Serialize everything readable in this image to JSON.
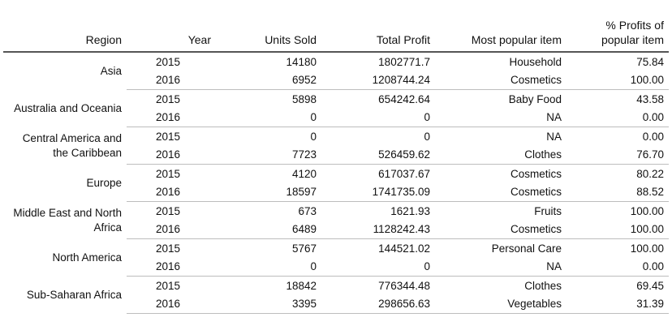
{
  "headers": {
    "region": "Region",
    "year": "Year",
    "units": "Units Sold",
    "profit": "Total Profit",
    "item": "Most popular item",
    "pct": "% Profits of popular item"
  },
  "groups": [
    {
      "region": "Asia",
      "rows": [
        {
          "year": "2015",
          "units": "14180",
          "profit": "1802771.7",
          "item": "Household",
          "pct": "75.84"
        },
        {
          "year": "2016",
          "units": "6952",
          "profit": "1208744.24",
          "item": "Cosmetics",
          "pct": "100.00"
        }
      ]
    },
    {
      "region": "Australia and Oceania",
      "rows": [
        {
          "year": "2015",
          "units": "5898",
          "profit": "654242.64",
          "item": "Baby Food",
          "pct": "43.58"
        },
        {
          "year": "2016",
          "units": "0",
          "profit": "0",
          "item": "NA",
          "pct": "0.00"
        }
      ]
    },
    {
      "region": "Central America and the Caribbean",
      "rows": [
        {
          "year": "2015",
          "units": "0",
          "profit": "0",
          "item": "NA",
          "pct": "0.00"
        },
        {
          "year": "2016",
          "units": "7723",
          "profit": "526459.62",
          "item": "Clothes",
          "pct": "76.70"
        }
      ]
    },
    {
      "region": "Europe",
      "rows": [
        {
          "year": "2015",
          "units": "4120",
          "profit": "617037.67",
          "item": "Cosmetics",
          "pct": "80.22"
        },
        {
          "year": "2016",
          "units": "18597",
          "profit": "1741735.09",
          "item": "Cosmetics",
          "pct": "88.52"
        }
      ]
    },
    {
      "region": "Middle East and North Africa",
      "rows": [
        {
          "year": "2015",
          "units": "673",
          "profit": "1621.93",
          "item": "Fruits",
          "pct": "100.00"
        },
        {
          "year": "2016",
          "units": "6489",
          "profit": "1128242.43",
          "item": "Cosmetics",
          "pct": "100.00"
        }
      ]
    },
    {
      "region": "North America",
      "rows": [
        {
          "year": "2015",
          "units": "5767",
          "profit": "144521.02",
          "item": "Personal Care",
          "pct": "100.00"
        },
        {
          "year": "2016",
          "units": "0",
          "profit": "0",
          "item": "NA",
          "pct": "0.00"
        }
      ]
    },
    {
      "region": "Sub-Saharan Africa",
      "rows": [
        {
          "year": "2015",
          "units": "18842",
          "profit": "776344.48",
          "item": "Clothes",
          "pct": "69.45"
        },
        {
          "year": "2016",
          "units": "3395",
          "profit": "298656.63",
          "item": "Vegetables",
          "pct": "31.39"
        }
      ]
    }
  ]
}
